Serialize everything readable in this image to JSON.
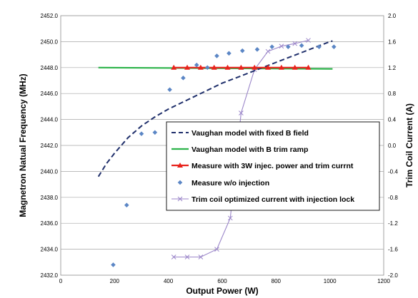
{
  "chart_data": {
    "type": "line",
    "title": "",
    "xlabel": "Output Power (W)",
    "ylabel": "Magnetron Natual Frequency (MHz)",
    "y2label": "Trim Coil Current (A)",
    "xlim": [
      0,
      1200
    ],
    "ylim": [
      2432.0,
      2452.0
    ],
    "y2lim": [
      -2.0,
      2.0
    ],
    "grid": "horizontal",
    "legend_position": "right",
    "x_ticks": [
      0,
      200,
      400,
      600,
      800,
      1000,
      1200
    ],
    "y_ticks": [
      "2432.0",
      "2434.0",
      "2436.0",
      "2438.0",
      "2440.0",
      "2442.0",
      "2444.0",
      "2446.0",
      "2448.0",
      "2450.0",
      "2452.0"
    ],
    "y2_ticks": [
      "-2.0",
      "-1.6",
      "-1.2",
      "-0.8",
      "-0.4",
      "0.0",
      "0.4",
      "0.8",
      "1.2",
      "1.6",
      "2.0"
    ],
    "series": [
      {
        "name": "Vaughan model with fixed B field",
        "axis": "left",
        "style": "dashed",
        "color": "#1f2f6b",
        "x": [
          140,
          170,
          200,
          250,
          300,
          350,
          400,
          450,
          500,
          550,
          600,
          650,
          700,
          750,
          800,
          850,
          900,
          950,
          1000,
          1010
        ],
        "y": [
          2439.6,
          2440.6,
          2441.4,
          2442.6,
          2443.5,
          2444.2,
          2444.8,
          2445.3,
          2445.8,
          2446.3,
          2446.8,
          2447.2,
          2447.6,
          2448.0,
          2448.4,
          2448.8,
          2449.2,
          2449.6,
          2450.0,
          2450.05
        ]
      },
      {
        "name": "Vaughan model with B trim ramp",
        "axis": "left",
        "style": "solid",
        "color": "#2db34a",
        "x": [
          140,
          1010
        ],
        "y": [
          2448.0,
          2447.9
        ]
      },
      {
        "name": "Measure with 3W injec. power and trim currnt",
        "axis": "left",
        "style": "solid-triangle",
        "color": "#e8231c",
        "x": [
          420,
          470,
          520,
          570,
          620,
          670,
          720,
          770,
          820,
          870,
          920
        ],
        "y": [
          2448.0,
          2448.0,
          2448.0,
          2448.0,
          2448.0,
          2448.0,
          2448.0,
          2448.0,
          2448.0,
          2448.0,
          2448.0
        ]
      },
      {
        "name": "Measure w/o injection",
        "axis": "left",
        "style": "diamond",
        "color": "#5b86c5",
        "x": [
          195,
          245,
          300,
          350,
          405,
          455,
          505,
          545,
          580,
          625,
          675,
          730,
          785,
          845,
          895,
          960,
          1015
        ],
        "y": [
          2432.8,
          2437.4,
          2442.9,
          2443.0,
          2446.3,
          2447.2,
          2448.2,
          2448.0,
          2448.9,
          2449.1,
          2449.3,
          2449.4,
          2449.6,
          2449.6,
          2449.7,
          2449.6,
          2449.6
        ]
      },
      {
        "name": "Trim coil optimized current with injection lock",
        "axis": "right",
        "style": "solid-x",
        "color": "#9b86c9",
        "x": [
          420,
          470,
          520,
          580,
          630,
          670,
          720,
          770,
          820,
          870,
          920
        ],
        "y": [
          -1.72,
          -1.72,
          -1.72,
          -1.6,
          -1.12,
          0.5,
          1.17,
          1.45,
          1.53,
          1.57,
          1.62
        ]
      }
    ]
  }
}
